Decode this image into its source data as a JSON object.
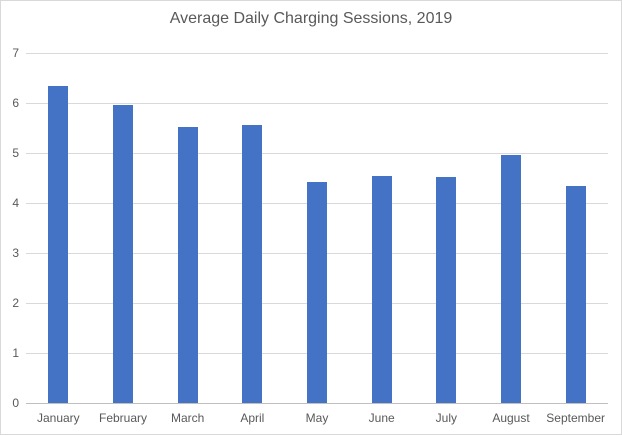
{
  "chart": {
    "title": "Average Daily Charging Sessions, 2019",
    "colors": {
      "bar": "#4472C4",
      "gridline": "#D9D9D9",
      "baseline": "#BFBFBF",
      "text": "#595959",
      "border": "#D9D9D9",
      "background": "#FFFFFF"
    }
  },
  "chart_data": {
    "type": "bar",
    "title": "Average Daily Charging Sessions, 2019",
    "categories": [
      "January",
      "February",
      "March",
      "April",
      "May",
      "June",
      "July",
      "August",
      "September"
    ],
    "values": [
      6.34,
      5.97,
      5.53,
      5.56,
      4.42,
      4.54,
      4.52,
      4.97,
      4.34
    ],
    "xlabel": "",
    "ylabel": "",
    "ylim": [
      0,
      7
    ],
    "yticks": [
      0,
      1,
      2,
      3,
      4,
      5,
      6,
      7
    ],
    "grid": true,
    "legend": false,
    "bar_color": "#4472C4"
  }
}
